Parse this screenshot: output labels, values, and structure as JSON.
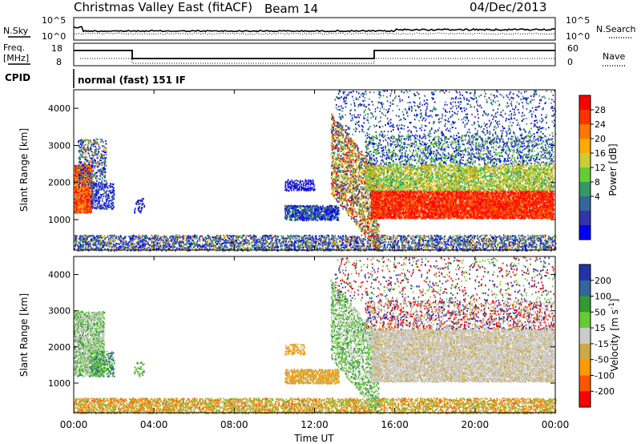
{
  "header": {
    "station": "Christmas Valley East (fitACF)",
    "beam": "Beam 14",
    "date": "04/Dec/2013",
    "cpid_label": "CPID",
    "cpid_value": "normal (fast) 151 IF"
  },
  "top_panels": {
    "nsky_label": "N.Sky",
    "nsky_ticks": [
      "10^5",
      "10^0"
    ],
    "nsearch_label": "N.Search",
    "nsearch_ticks": [
      "10^5",
      "10^0"
    ],
    "freq_label_1": "Freq.",
    "freq_label_2": "[MHz]",
    "freq_ticks": [
      "18",
      "8"
    ],
    "nave_label": "Nave",
    "nave_ticks": [
      "60",
      "0"
    ]
  },
  "chart_data": [
    {
      "type": "heatmap",
      "name": "power-panel",
      "ylabel": "Slant Range [km]",
      "yticks": [
        1000,
        2000,
        3000,
        4000
      ],
      "ylim": [
        180,
        4500
      ],
      "xticks": [
        "00:00",
        "04:00",
        "08:00",
        "12:00",
        "16:00",
        "20:00",
        "00:00"
      ],
      "xlim_hours": [
        0,
        24
      ],
      "colorbar": {
        "label": "Power [dB]",
        "ticks": [
          "28",
          "24",
          "20",
          "16",
          "12",
          "8",
          "4"
        ],
        "colors": [
          "#ff0000",
          "#ff3300",
          "#ff7700",
          "#ffaa00",
          "#cccc33",
          "#66cc33",
          "#339966",
          "#336699",
          "#3333aa",
          "#0000ff"
        ]
      }
    },
    {
      "type": "heatmap",
      "name": "velocity-panel",
      "ylabel": "Slant Range [km]",
      "yticks": [
        1000,
        2000,
        3000,
        4000
      ],
      "ylim": [
        180,
        4500
      ],
      "xticks": [
        "00:00",
        "04:00",
        "08:00",
        "12:00",
        "16:00",
        "20:00",
        "00:00"
      ],
      "xlim_hours": [
        0,
        24
      ],
      "xlabel": "Time UT",
      "colorbar": {
        "label": "Velocity [m s^-1]",
        "ticks": [
          "200",
          "100",
          "50",
          "15",
          "-15",
          "-50",
          "-100",
          "-200"
        ],
        "colors": [
          "#2233aa",
          "#336699",
          "#339933",
          "#66cc33",
          "#cccccc",
          "#ccaa44",
          "#ff9900",
          "#ff5500",
          "#ff0000"
        ]
      }
    }
  ]
}
